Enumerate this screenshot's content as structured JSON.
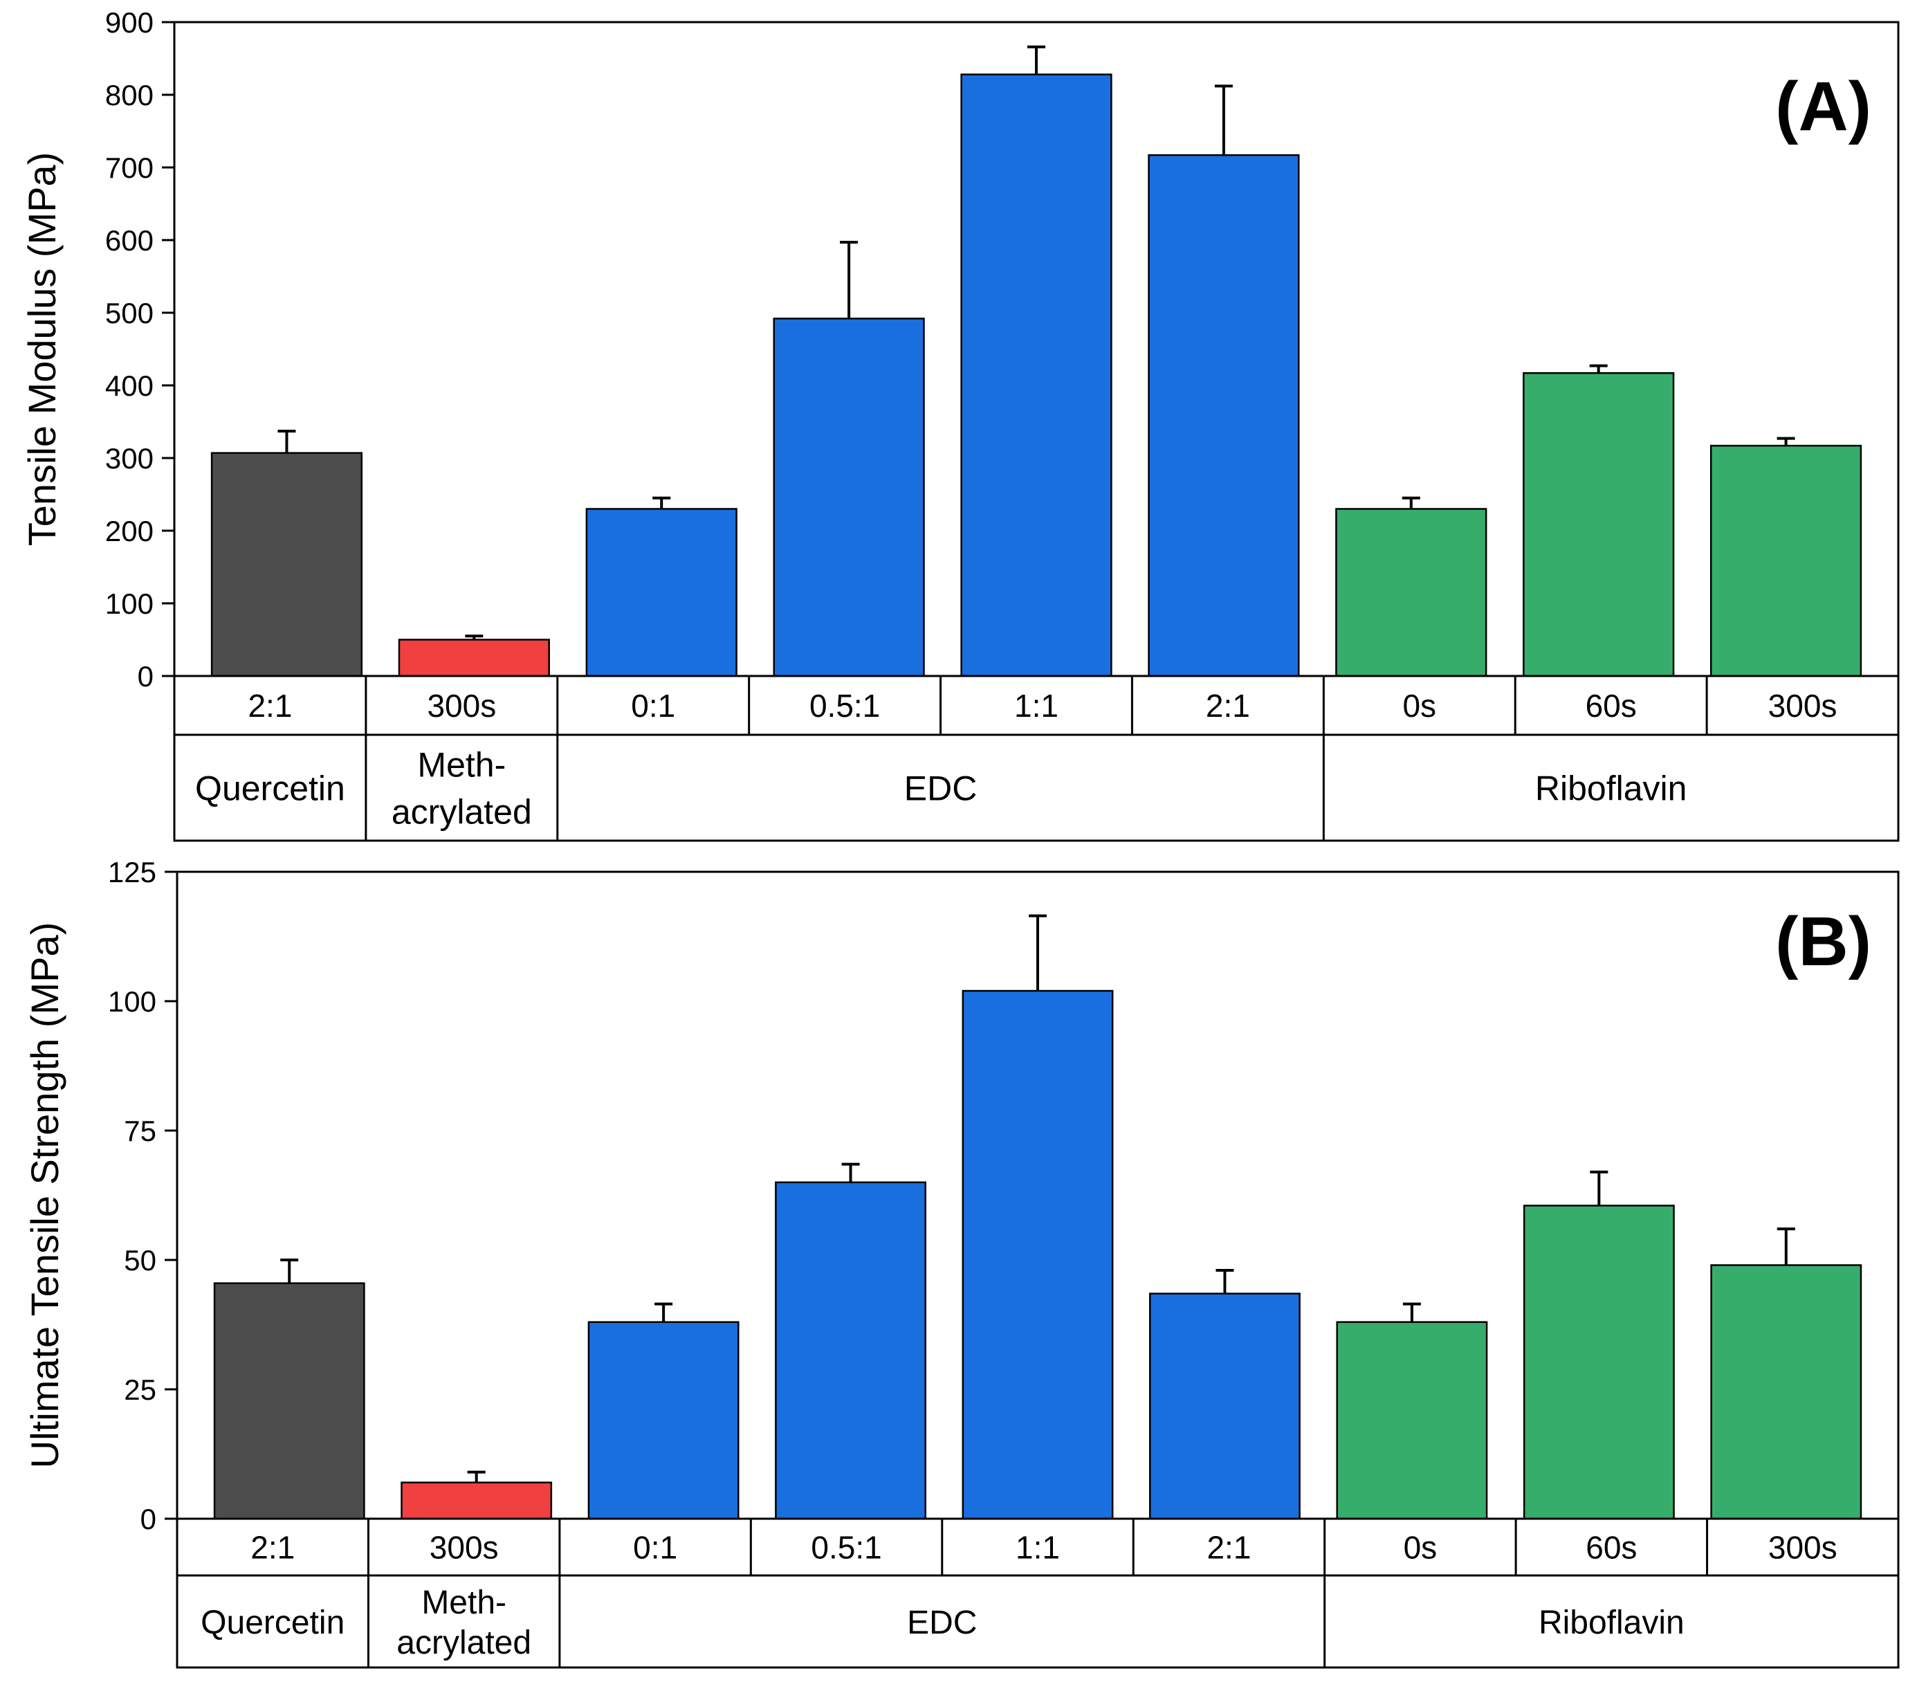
{
  "chart_data": [
    {
      "type": "bar",
      "panel_label": "(A)",
      "title": "",
      "xlabel": "",
      "ylabel": "Tensile Modulus (MPa)",
      "ylim": [
        0,
        900
      ],
      "yticks": [
        0,
        100,
        200,
        300,
        400,
        500,
        600,
        700,
        800,
        900
      ],
      "categories": [
        "2:1",
        "300s",
        "0:1",
        "0.5:1",
        "1:1",
        "2:1",
        "0s",
        "60s",
        "300s"
      ],
      "groups": [
        {
          "label_lines": [
            "Quercetin"
          ],
          "span": 1
        },
        {
          "label_lines": [
            "Meth-",
            "acrylated"
          ],
          "span": 1
        },
        {
          "label_lines": [
            "EDC"
          ],
          "span": 4
        },
        {
          "label_lines": [
            "Riboflavin"
          ],
          "span": 3
        }
      ],
      "values": [
        307,
        50,
        230,
        492,
        828,
        717,
        230,
        417,
        317
      ],
      "errors": [
        30,
        5,
        15,
        105,
        38,
        95,
        15,
        10,
        10
      ],
      "colors": [
        "#4d4d4d",
        "#f04040",
        "#1a6fdf",
        "#1a6fdf",
        "#1a6fdf",
        "#1a6fdf",
        "#37ad6b",
        "#37ad6b",
        "#37ad6b"
      ]
    },
    {
      "type": "bar",
      "panel_label": "(B)",
      "title": "",
      "xlabel": "",
      "ylabel": "Ultimate Tensile Strength (MPa)",
      "ylim": [
        0,
        125
      ],
      "yticks": [
        0,
        25,
        50,
        75,
        100,
        125
      ],
      "categories": [
        "2:1",
        "300s",
        "0:1",
        "0.5:1",
        "1:1",
        "2:1",
        "0s",
        "60s",
        "300s"
      ],
      "groups": [
        {
          "label_lines": [
            "Quercetin"
          ],
          "span": 1
        },
        {
          "label_lines": [
            "Meth-",
            "acrylated"
          ],
          "span": 1
        },
        {
          "label_lines": [
            "EDC"
          ],
          "span": 4
        },
        {
          "label_lines": [
            "Riboflavin"
          ],
          "span": 3
        }
      ],
      "values": [
        45.5,
        7,
        38,
        65,
        102,
        43.5,
        38,
        60.5,
        49
      ],
      "errors": [
        4.5,
        2,
        3.5,
        3.5,
        14.5,
        4.5,
        3.5,
        6.5,
        7
      ],
      "colors": [
        "#4d4d4d",
        "#f04040",
        "#1a6fdf",
        "#1a6fdf",
        "#1a6fdf",
        "#1a6fdf",
        "#37ad6b",
        "#37ad6b",
        "#37ad6b"
      ]
    }
  ]
}
